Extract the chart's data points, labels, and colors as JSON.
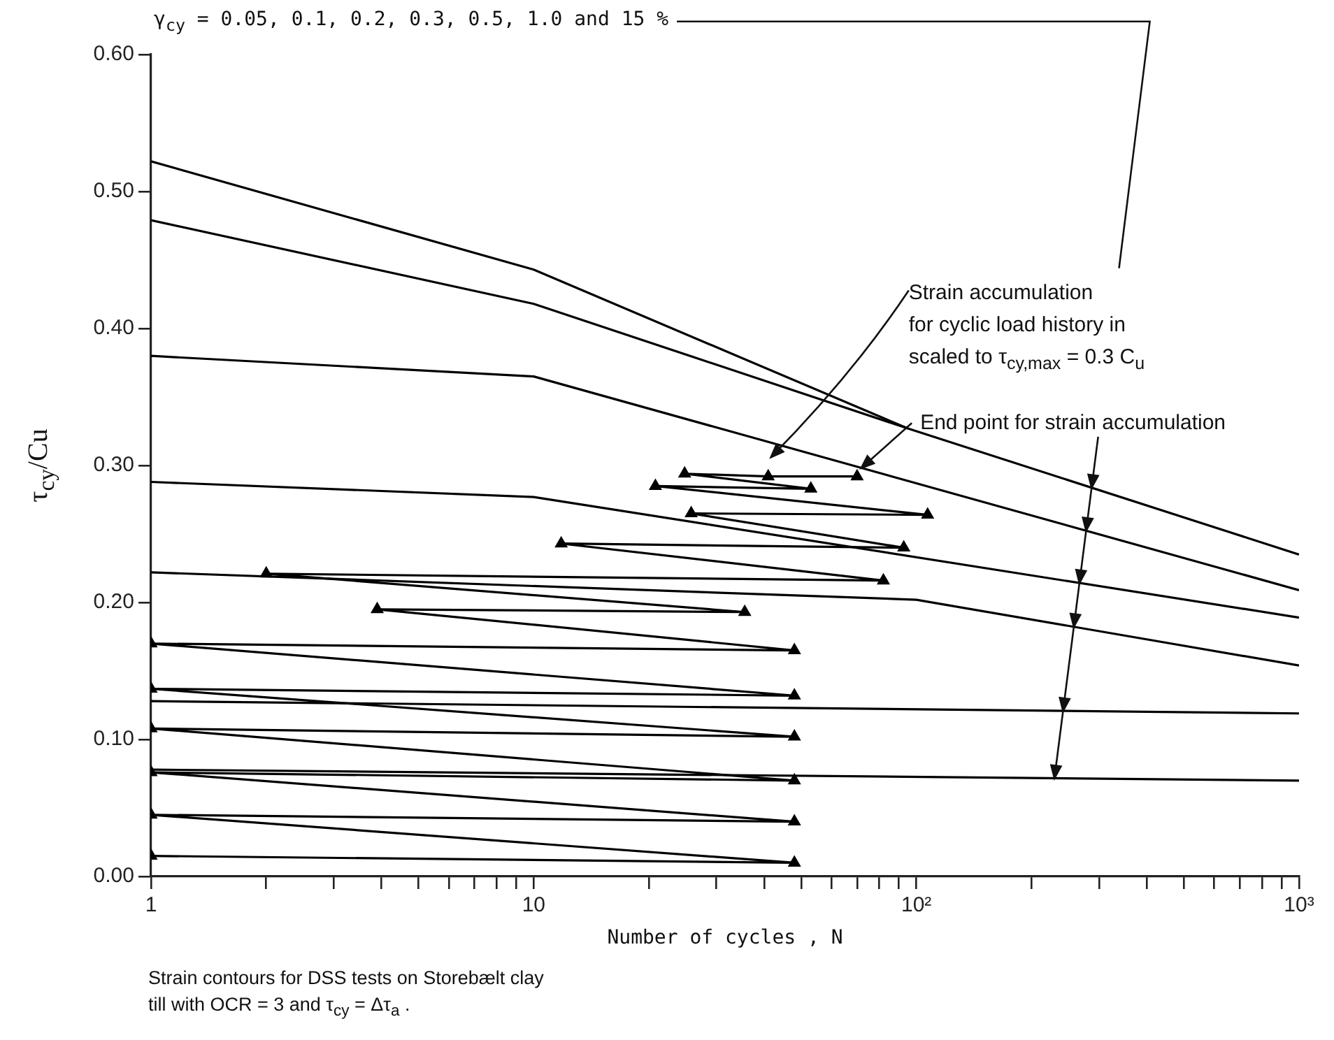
{
  "chart_data": {
    "type": "line",
    "title": "γ$_{cy}$ = 0.05, 0.1, 0.2, 0.3, 0.5, 1.0 and 15 %",
    "xlabel": "Number of cycles , N",
    "ylabel": "τ$_{cy}$/Cu",
    "log": "x",
    "xlim": [
      1,
      1000
    ],
    "ylim": [
      0,
      0.6
    ],
    "xticks": [
      {
        "value": 1,
        "label": "1"
      },
      {
        "value": 2,
        "label": null
      },
      {
        "value": 3,
        "label": null
      },
      {
        "value": 4,
        "label": null
      },
      {
        "value": 5,
        "label": null
      },
      {
        "value": 6,
        "label": null
      },
      {
        "value": 7,
        "label": null
      },
      {
        "value": 8,
        "label": null
      },
      {
        "value": 9,
        "label": null
      },
      {
        "value": 10,
        "label": "10"
      },
      {
        "value": 20,
        "label": null
      },
      {
        "value": 30,
        "label": null
      },
      {
        "value": 40,
        "label": null
      },
      {
        "value": 50,
        "label": null
      },
      {
        "value": 60,
        "label": null
      },
      {
        "value": 70,
        "label": null
      },
      {
        "value": 80,
        "label": null
      },
      {
        "value": 90,
        "label": null
      },
      {
        "value": 100,
        "label": "10²"
      },
      {
        "value": 200,
        "label": null
      },
      {
        "value": 300,
        "label": null
      },
      {
        "value": 400,
        "label": null
      },
      {
        "value": 500,
        "label": null
      },
      {
        "value": 600,
        "label": null
      },
      {
        "value": 700,
        "label": null
      },
      {
        "value": 800,
        "label": null
      },
      {
        "value": 900,
        "label": null
      },
      {
        "value": 1000,
        "label": "10³"
      }
    ],
    "yticks": [
      {
        "value": 0,
        "label": "0.00"
      },
      {
        "value": 0.1,
        "label": "0.10"
      },
      {
        "value": 0.2,
        "label": "0.20"
      },
      {
        "value": 0.3,
        "label": "0.30"
      },
      {
        "value": 0.4,
        "label": "0.40"
      },
      {
        "value": 0.5,
        "label": "0.50"
      },
      {
        "value": 0.6,
        "label": "0.60"
      }
    ],
    "grid": false,
    "legend": false,
    "marker": "none",
    "series": [
      {
        "type": "line",
        "color": "#000000",
        "x": [
          1,
          10,
          95
        ],
        "values": [
          0.522,
          0.443,
          0.327
        ]
      },
      {
        "type": "line",
        "color": "#000000",
        "x": [
          1,
          10,
          95,
          1000
        ],
        "values": [
          0.479,
          0.418,
          0.327,
          0.235
        ]
      },
      {
        "type": "line",
        "color": "#000000",
        "x": [
          1,
          10,
          1000
        ],
        "values": [
          0.38,
          0.365,
          0.209
        ]
      },
      {
        "type": "line",
        "color": "#000000",
        "x": [
          1,
          10,
          1000
        ],
        "values": [
          0.288,
          0.277,
          0.189
        ]
      },
      {
        "type": "line",
        "color": "#000000",
        "x": [
          1,
          100,
          1000
        ],
        "values": [
          0.222,
          0.202,
          0.154
        ]
      },
      {
        "type": "line",
        "color": "#000000",
        "x": [
          1,
          1000
        ],
        "values": [
          0.128,
          0.119
        ]
      },
      {
        "type": "line",
        "color": "#000000",
        "x": [
          1,
          1000
        ],
        "values": [
          0.078,
          0.07
        ]
      },
      {
        "type": "line",
        "color": "#000000",
        "marker": "triangle",
        "x": [
          1,
          48,
          1,
          48,
          1,
          48,
          1,
          48,
          1,
          48,
          1,
          48,
          3.9,
          35.6,
          2,
          82,
          11.8,
          92.7,
          25.8,
          107,
          20.8,
          53,
          24.8,
          41,
          70
        ],
        "values": [
          0.015,
          0.01,
          0.045,
          0.04,
          0.076,
          0.07,
          0.108,
          0.102,
          0.137,
          0.132,
          0.17,
          0.165,
          0.195,
          0.193,
          0.221,
          0.216,
          0.243,
          0.24,
          0.265,
          0.264,
          0.285,
          0.283,
          0.294,
          0.292,
          0.292
        ]
      }
    ],
    "annotations": [
      "Strain accumulation\nfor cyclic load history in\nscaled to τ$_{cy,max}$ = 0.3 C$_{u}$",
      {
        "text": "End point for strain accumulation",
        "x": 70,
        "y": 0.292
      },
      "Strain contours for DSS tests on Storebælt clay\ntill with OCR = 3 and τ$_{cy}$ = Δτ$_{a}$ ."
    ]
  }
}
